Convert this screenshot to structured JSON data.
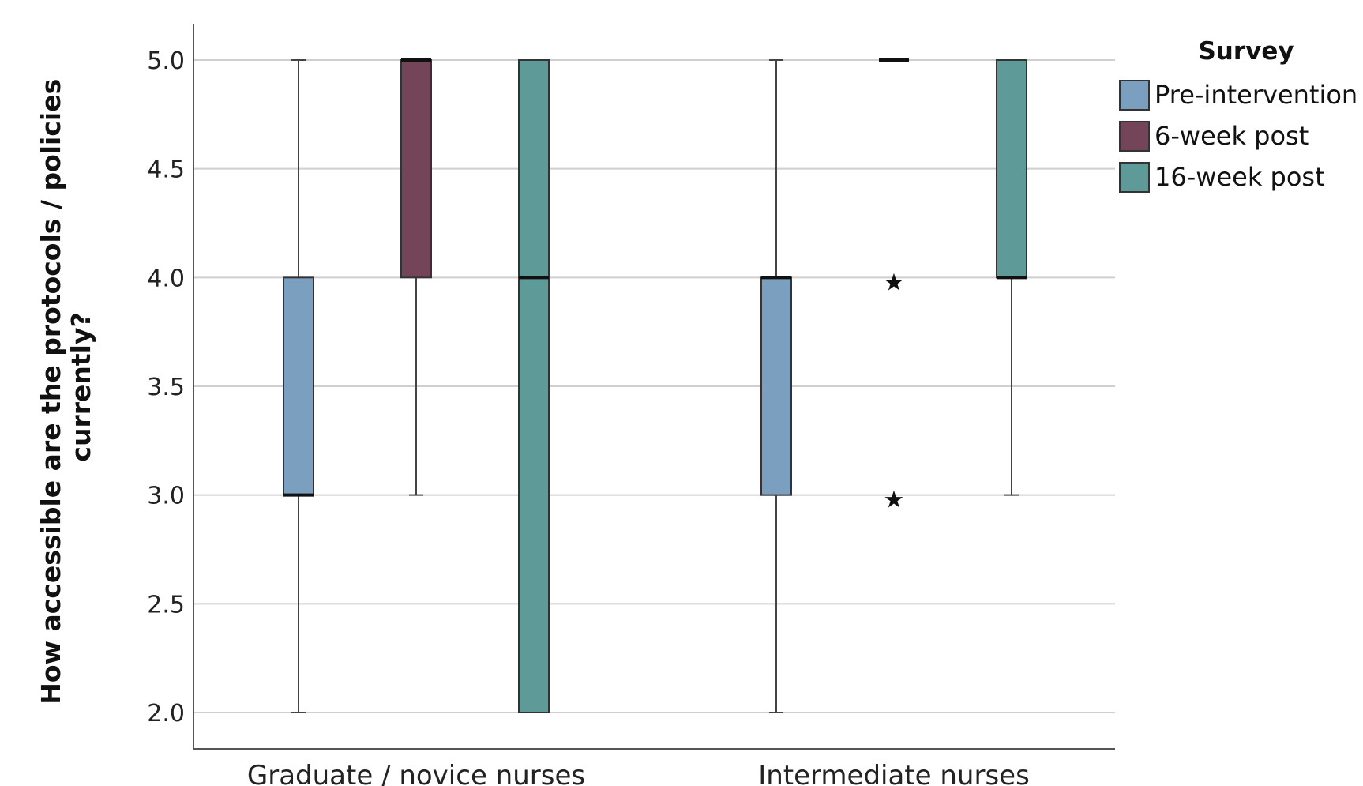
{
  "chart_data": {
    "type": "boxplot",
    "ylabel_lines": [
      "How accessible are the protocols / policies",
      "currently?"
    ],
    "xlabel": "",
    "ylim": [
      2.0,
      5.0
    ],
    "yticks": [
      2.0,
      2.5,
      3.0,
      3.5,
      4.0,
      4.5,
      5.0
    ],
    "grid": true,
    "categories": [
      "Graduate / novice nurses",
      "Intermediate nurses"
    ],
    "legend": {
      "title": "Survey",
      "placement": "right"
    },
    "series": [
      {
        "name": "Pre-intervention",
        "color": "#7ba0bf",
        "boxes": [
          {
            "min": 2.0,
            "q1": 3.0,
            "median": 3.0,
            "q3": 4.0,
            "max": 5.0,
            "outliers": []
          },
          {
            "min": 2.0,
            "q1": 3.0,
            "median": 4.0,
            "q3": 4.0,
            "max": 5.0,
            "outliers": []
          }
        ]
      },
      {
        "name": "6-week post",
        "color": "#744458",
        "boxes": [
          {
            "min": 3.0,
            "q1": 4.0,
            "median": 5.0,
            "q3": 5.0,
            "max": 5.0,
            "outliers": []
          },
          {
            "min": 5.0,
            "q1": 5.0,
            "median": 5.0,
            "q3": 5.0,
            "max": 5.0,
            "outliers": [
              4.0,
              3.0
            ]
          }
        ]
      },
      {
        "name": "16-week post",
        "color": "#5e9a98",
        "boxes": [
          {
            "min": 2.0,
            "q1": 2.0,
            "median": 4.0,
            "q3": 5.0,
            "max": 5.0,
            "outliers": []
          },
          {
            "min": 3.0,
            "q1": 4.0,
            "median": 4.0,
            "q3": 5.0,
            "max": 5.0,
            "outliers": []
          }
        ]
      }
    ]
  }
}
